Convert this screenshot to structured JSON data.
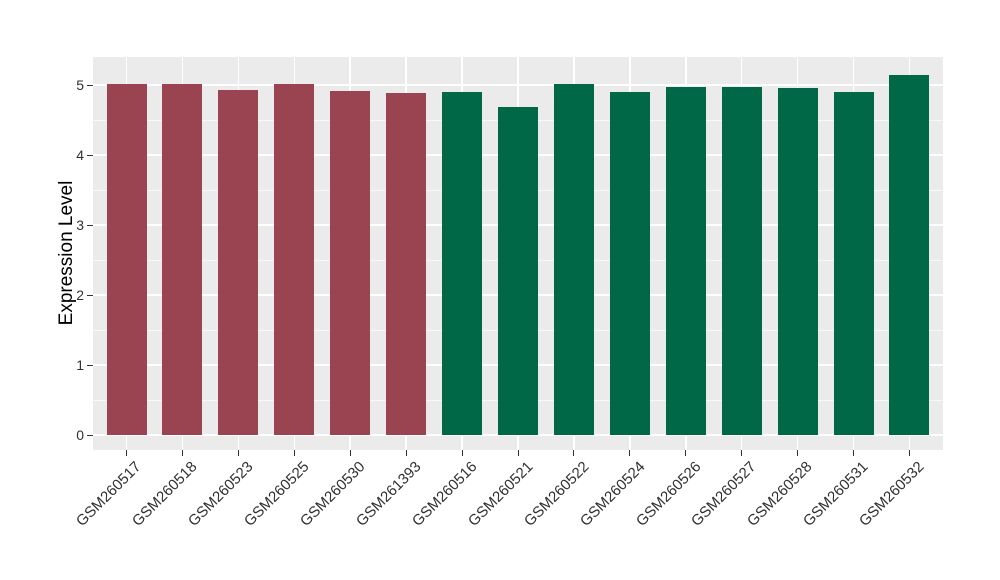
{
  "chart_data": {
    "type": "bar",
    "title": "",
    "xlabel": "",
    "ylabel": "Expression Level",
    "categories": [
      "GSM260517",
      "GSM260518",
      "GSM260523",
      "GSM260525",
      "GSM260530",
      "GSM261393",
      "GSM260516",
      "GSM260521",
      "GSM260522",
      "GSM260524",
      "GSM260526",
      "GSM260527",
      "GSM260528",
      "GSM260531",
      "GSM260532"
    ],
    "values": [
      5.01,
      5.01,
      4.93,
      5.01,
      4.92,
      4.88,
      4.9,
      4.68,
      5.02,
      4.9,
      4.97,
      4.97,
      4.96,
      4.9,
      5.15
    ],
    "bar_colors": [
      "#9A4451",
      "#9A4451",
      "#9A4451",
      "#9A4451",
      "#9A4451",
      "#9A4451",
      "#006747",
      "#006747",
      "#006747",
      "#006747",
      "#006747",
      "#006747",
      "#006747",
      "#006747",
      "#006747"
    ],
    "group_colors": {
      "left_group": "#9A4451",
      "right_group": "#006747"
    },
    "yticks": [
      0,
      1,
      2,
      3,
      4,
      5
    ],
    "yminor": [
      0.5,
      1.5,
      2.5,
      3.5,
      4.5
    ],
    "ylim": [
      -0.26,
      5.41
    ],
    "grid": "on",
    "legend": "none",
    "panel_bg": "#EBEBEB",
    "grid_color": "#FFFFFF",
    "axis_text_color": "#303030"
  }
}
